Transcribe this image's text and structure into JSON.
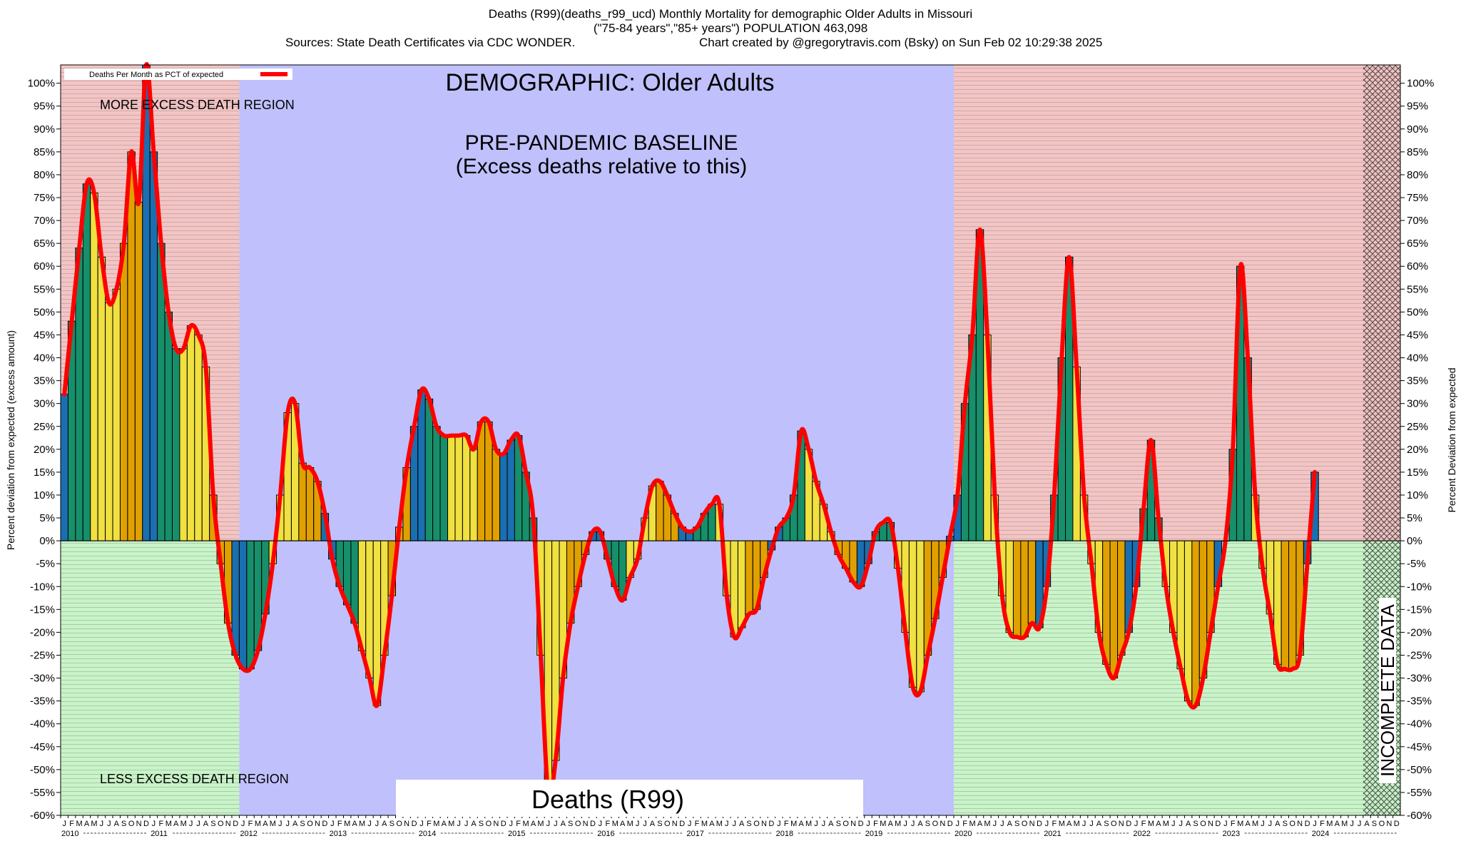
{
  "header": {
    "line1": "Deaths (R99)(deaths_r99_ucd) Monthly Mortality for demographic Older Adults in Missouri",
    "line2": "(\"75-84 years\",\"85+ years\") POPULATION 463,098",
    "line3_left": "Sources: State Death Certificates via CDC WONDER.",
    "line3_right": "Chart created by @gregorytravis.com (Bsky) on Sun Feb 02 10:29:38 2025"
  },
  "annotations": {
    "demographic": "DEMOGRAPHIC: Older Adults",
    "baseline_1": "PRE-PANDEMIC BASELINE",
    "baseline_2": "(Excess deaths relative to this)",
    "more_region": "MORE EXCESS DEATH REGION",
    "less_region": "LESS EXCESS DEATH REGION",
    "cause_box": "Deaths (R99)",
    "incomplete": "INCOMPLETE DATA"
  },
  "colors": {
    "excess_region": "#f4c4c4",
    "less_region": "#c8f4c8",
    "baseline_region": "#c0c0fc",
    "line": "#ff0000",
    "bar_winter": "#1a6fb0",
    "bar_spring": "#168f6a",
    "bar_summer": "#f0e040",
    "bar_fall": "#e0a000"
  },
  "chart_data": {
    "type": "bar",
    "legend": {
      "label": "Deaths Per Month as PCT of expected",
      "position": "top-left"
    },
    "ylabel_left": "Percent deviation from expected (excess amount)",
    "ylabel_right": "Percent Deviation from expected",
    "ylim": [
      -60,
      104
    ],
    "y_ticks": [
      100,
      95,
      90,
      85,
      80,
      75,
      70,
      65,
      60,
      55,
      50,
      45,
      40,
      35,
      30,
      25,
      20,
      15,
      10,
      5,
      0,
      -5,
      -10,
      -15,
      -20,
      -25,
      -30,
      -35,
      -40,
      -45,
      -50,
      -55,
      -60
    ],
    "month_letters": [
      "J",
      "F",
      "M",
      "A",
      "M",
      "J",
      "J",
      "A",
      "S",
      "O",
      "N",
      "D"
    ],
    "years": [
      "2010",
      "2011",
      "2012",
      "2013",
      "2014",
      "2015",
      "2016",
      "2017",
      "2018",
      "2019",
      "2020",
      "2021",
      "2022",
      "2023",
      "2024"
    ],
    "start": "2010-01",
    "baseline_period": {
      "from": "2012-01",
      "to": "2019-12"
    },
    "incomplete_from": "2024-08",
    "values": [
      32,
      48,
      64,
      78,
      76,
      62,
      52,
      55,
      65,
      85,
      74,
      104,
      85,
      65,
      50,
      42,
      42,
      47,
      45,
      38,
      10,
      -5,
      -18,
      -25,
      -28,
      -28,
      -24,
      -16,
      -5,
      10,
      28,
      30,
      17,
      16,
      13,
      6,
      -4,
      -10,
      -14,
      -18,
      -24,
      -30,
      -36,
      -25,
      -12,
      3,
      16,
      25,
      33,
      31,
      25,
      23,
      23,
      23,
      23,
      20,
      26,
      26,
      20,
      19,
      22,
      23,
      15,
      5,
      -25,
      -55,
      -48,
      -30,
      -18,
      -10,
      -3,
      2,
      2,
      -4,
      -10,
      -13,
      -8,
      -4,
      5,
      12,
      13,
      10,
      6,
      3,
      2,
      3,
      6,
      8,
      8,
      -12,
      -21,
      -19,
      -16,
      -15,
      -8,
      -2,
      3,
      5,
      10,
      24,
      20,
      13,
      8,
      2,
      -3,
      -6,
      -9,
      -10,
      -5,
      2,
      4,
      4,
      -6,
      -20,
      -32,
      -33,
      -25,
      -17,
      -8,
      1,
      10,
      30,
      45,
      68,
      45,
      10,
      -12,
      -20,
      -21,
      -21,
      -18,
      -19,
      -10,
      10,
      40,
      62,
      38,
      10,
      -5,
      -20,
      -27,
      -30,
      -25,
      -20,
      -10,
      7,
      22,
      5,
      -10,
      -20,
      -28,
      -35,
      -36,
      -30,
      -20,
      -10,
      0,
      20,
      60,
      40,
      10,
      -6,
      -16,
      -27,
      -28,
      -28,
      -25,
      -5,
      15
    ]
  }
}
